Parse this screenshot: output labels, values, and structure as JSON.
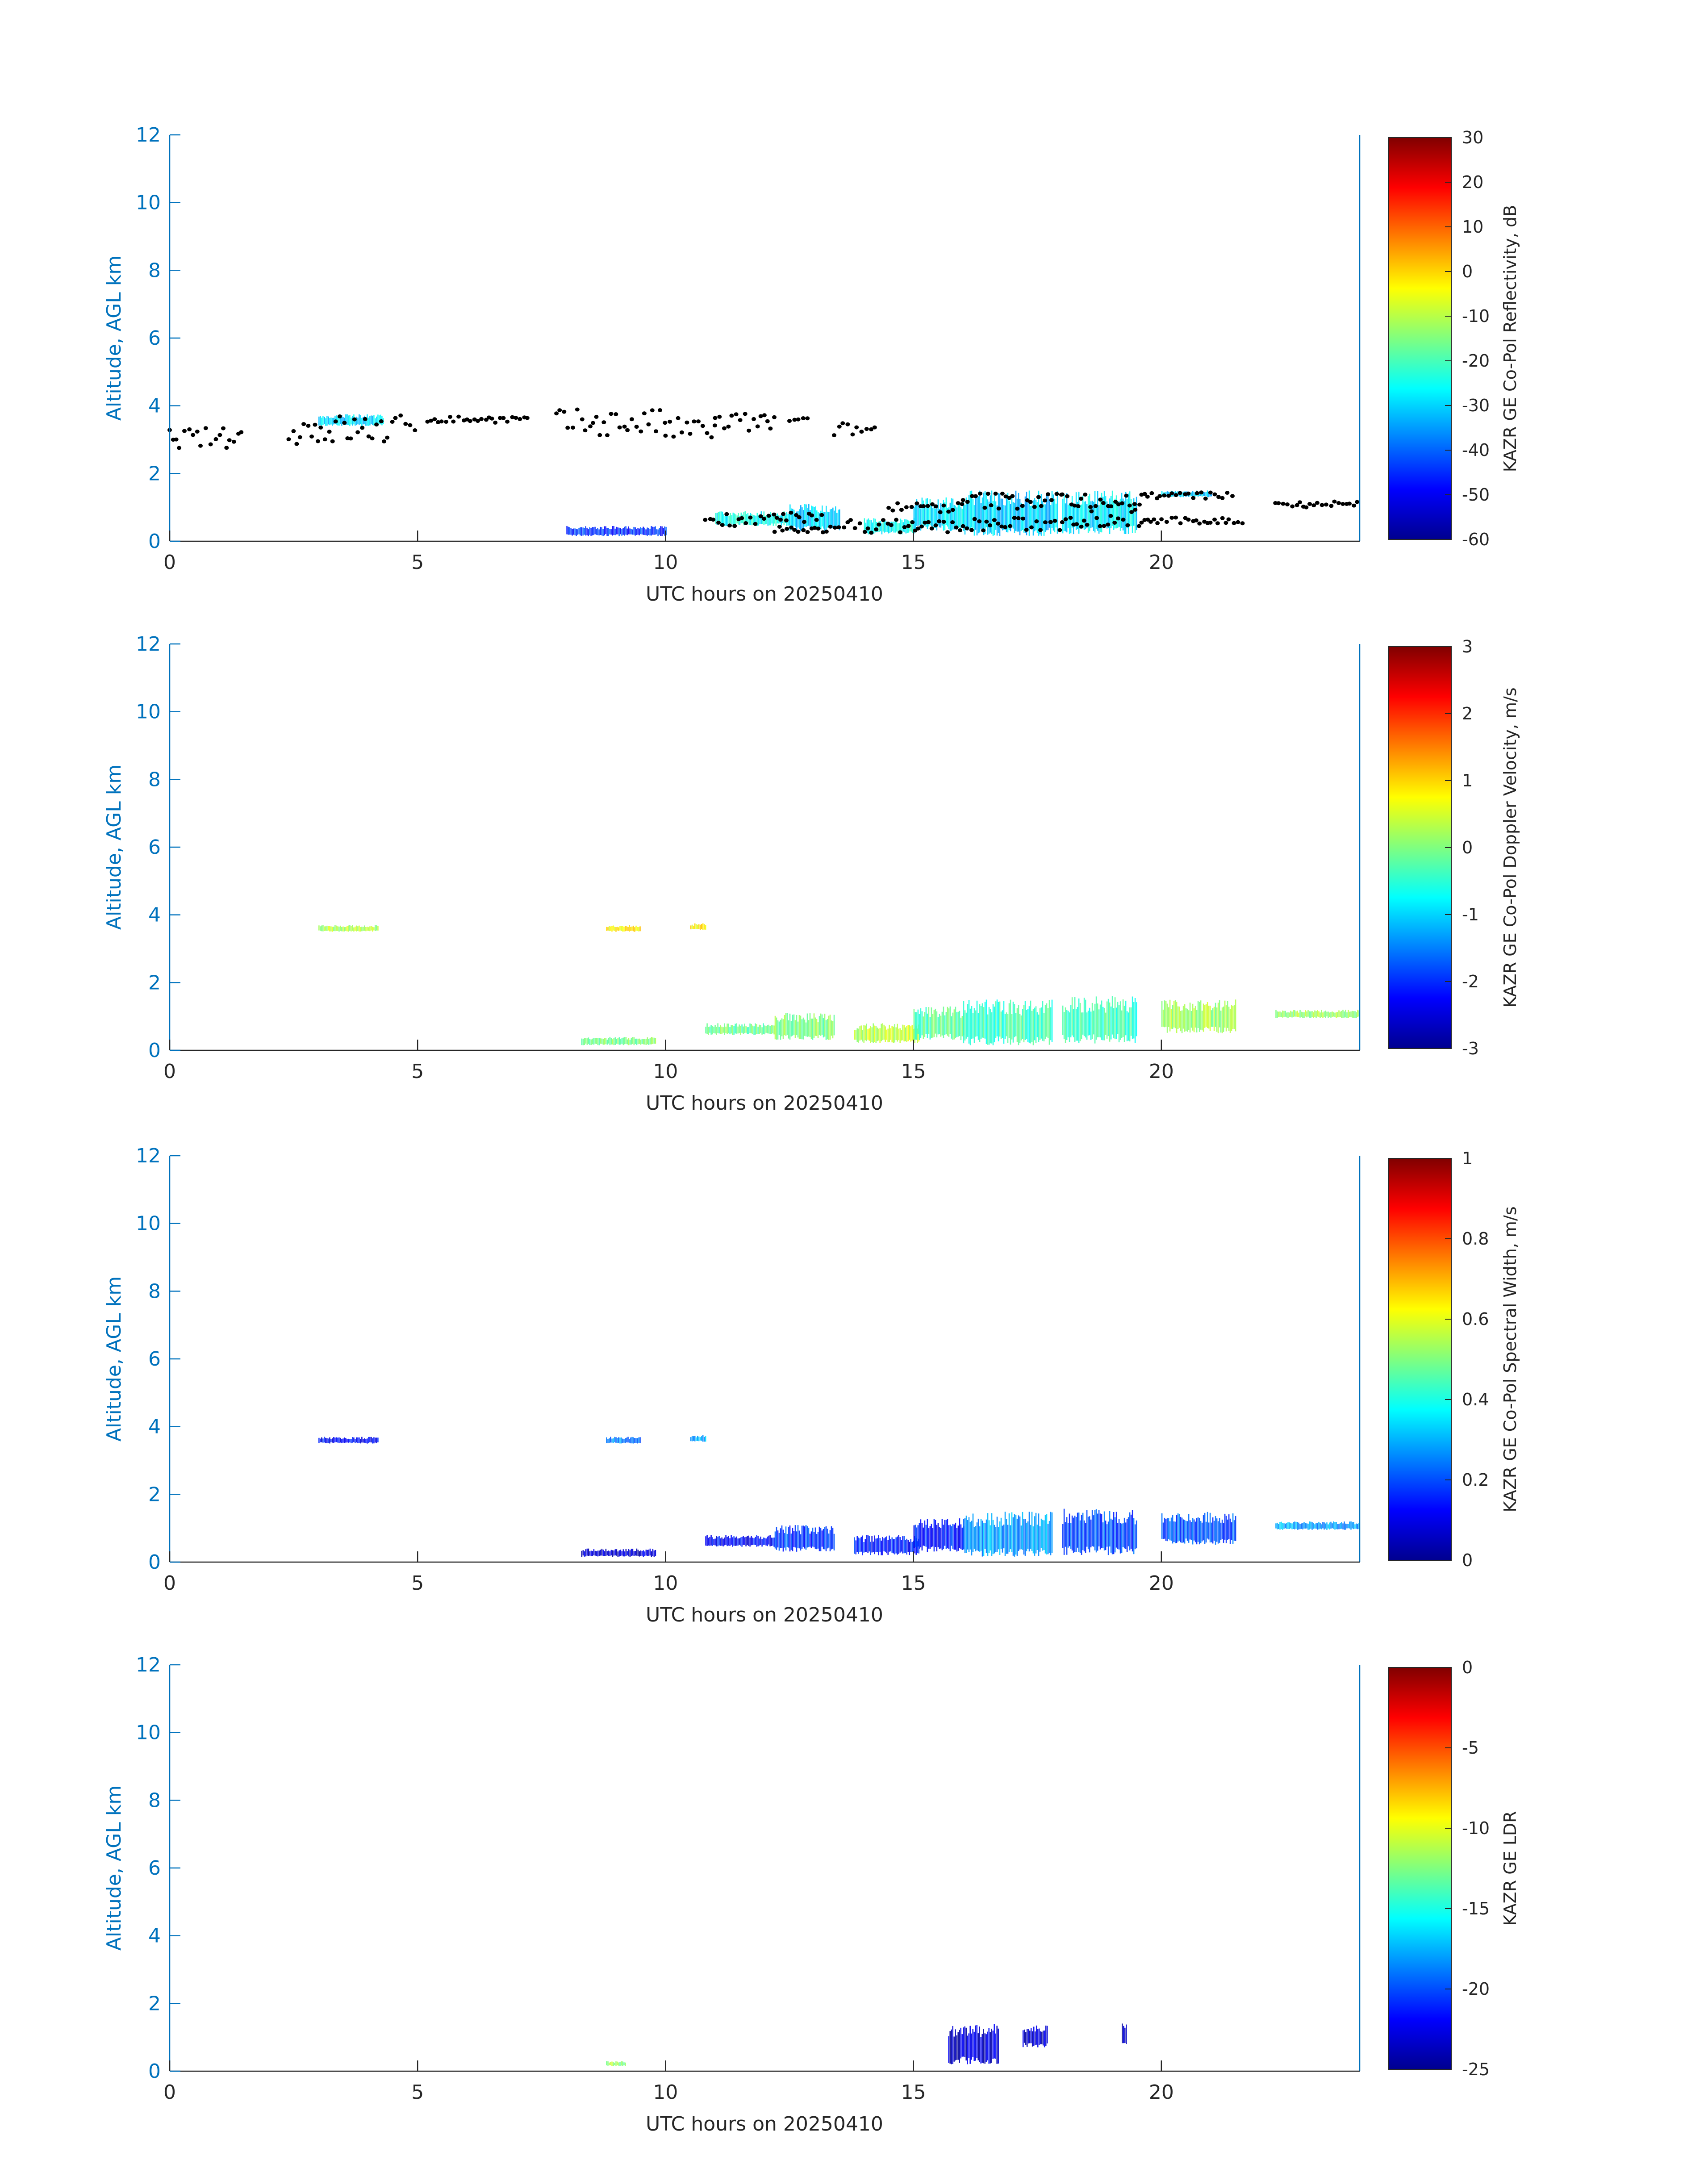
{
  "colors": {
    "axis_blue": "#0072bd",
    "text_dark": "#262626",
    "echo_mask": "#000000"
  },
  "chart_data": [
    {
      "type": "heatmap",
      "name": "reflectivity",
      "xlabel": "UTC hours on 20250410",
      "ylabel": "Altitude, AGL km",
      "xlim": [
        0,
        24
      ],
      "ylim": [
        0,
        12
      ],
      "xticks": [
        0,
        5,
        10,
        15,
        20
      ],
      "yticks": [
        0,
        2,
        4,
        6,
        8,
        10,
        12
      ],
      "colorbar": {
        "label": "KAZR GE Co-Pol Reflectivity, dB",
        "range": [
          -60,
          30
        ],
        "ticks": [
          -60,
          -50,
          -40,
          -30,
          -20,
          -10,
          0,
          10,
          20,
          30
        ]
      },
      "echo_regions": [
        {
          "x": [
            8.0,
            10.0
          ],
          "y": [
            0.15,
            0.45
          ],
          "value": -45
        },
        {
          "x": [
            11.0,
            12.5
          ],
          "y": [
            0.45,
            0.9
          ],
          "value": -25
        },
        {
          "x": [
            12.5,
            13.5
          ],
          "y": [
            0.3,
            1.1
          ],
          "value": -30
        },
        {
          "x": [
            14.0,
            15.0
          ],
          "y": [
            0.2,
            0.7
          ],
          "value": -25
        },
        {
          "x": [
            15.0,
            16.0
          ],
          "y": [
            0.3,
            1.3
          ],
          "value": -28
        },
        {
          "x": [
            16.0,
            17.9
          ],
          "y": [
            0.15,
            1.5
          ],
          "value": -30
        },
        {
          "x": [
            18.0,
            19.5
          ],
          "y": [
            0.2,
            1.5
          ],
          "value": -28
        },
        {
          "x": [
            20.0,
            21.0
          ],
          "y": [
            1.3,
            1.5
          ],
          "value": -30
        },
        {
          "x": [
            3.0,
            4.3
          ],
          "y": [
            3.4,
            3.75
          ],
          "value": -30
        }
      ],
      "cloud_boundary_points": [
        {
          "x": [
            0.0,
            1.5
          ],
          "y": 3.05,
          "spread": 0.3
        },
        {
          "x": [
            2.4,
            5.0
          ],
          "y": 3.3,
          "spread": 0.45
        },
        {
          "x": [
            5.2,
            7.3
          ],
          "y": 3.6,
          "spread": 0.1
        },
        {
          "x": [
            7.8,
            10.0
          ],
          "y": 3.5,
          "spread": 0.4
        },
        {
          "x": [
            10.0,
            11.0
          ],
          "y": 3.3,
          "spread": 0.35
        },
        {
          "x": [
            11.0,
            12.2
          ],
          "y": 3.5,
          "spread": 0.3
        },
        {
          "x": [
            12.5,
            12.9
          ],
          "y": 3.55,
          "spread": 0.1
        },
        {
          "x": [
            13.4,
            14.3
          ],
          "y": 3.3,
          "spread": 0.2
        },
        {
          "x": [
            10.8,
            13.2
          ],
          "y": 0.65,
          "spread": 0.2
        },
        {
          "x": [
            12.2,
            13.5
          ],
          "y": 0.35,
          "spread": 0.1
        },
        {
          "x": [
            13.6,
            16.0
          ],
          "y": 0.45,
          "spread": 0.2
        },
        {
          "x": [
            14.5,
            16.0
          ],
          "y": 1.0,
          "spread": 0.15
        },
        {
          "x": [
            16.0,
            18.0
          ],
          "y": 1.2,
          "spread": 0.25
        },
        {
          "x": [
            16.0,
            18.0
          ],
          "y": 0.5,
          "spread": 0.2
        },
        {
          "x": [
            18.0,
            19.6
          ],
          "y": 0.7,
          "spread": 0.3
        },
        {
          "x": [
            18.0,
            19.6
          ],
          "y": 1.2,
          "spread": 0.2
        },
        {
          "x": [
            19.6,
            21.5
          ],
          "y": 1.35,
          "spread": 0.1
        },
        {
          "x": [
            19.6,
            21.7
          ],
          "y": 0.6,
          "spread": 0.1
        },
        {
          "x": [
            22.3,
            24.0
          ],
          "y": 1.1,
          "spread": 0.1
        }
      ]
    },
    {
      "type": "heatmap",
      "name": "doppler",
      "xlabel": "UTC hours on 20250410",
      "ylabel": "Altitude, AGL km",
      "xlim": [
        0,
        24
      ],
      "ylim": [
        0,
        12
      ],
      "xticks": [
        0,
        5,
        10,
        15,
        20
      ],
      "yticks": [
        0,
        2,
        4,
        6,
        8,
        10,
        12
      ],
      "colorbar": {
        "label": "KAZR GE Co-Pol Doppler Velocity, m/s",
        "range": [
          -3,
          3
        ],
        "ticks": [
          -3,
          -2,
          -1,
          0,
          1,
          2,
          3
        ]
      },
      "echo_regions": [
        {
          "x": [
            3.0,
            4.2
          ],
          "y": [
            3.5,
            3.7
          ],
          "value": 0.3
        },
        {
          "x": [
            8.8,
            9.5
          ],
          "y": [
            3.5,
            3.7
          ],
          "value": 0.8
        },
        {
          "x": [
            10.5,
            10.8
          ],
          "y": [
            3.55,
            3.75
          ],
          "value": 0.8
        },
        {
          "x": [
            8.3,
            9.8
          ],
          "y": [
            0.15,
            0.4
          ],
          "value": 0.0
        },
        {
          "x": [
            10.8,
            12.2
          ],
          "y": [
            0.45,
            0.8
          ],
          "value": -0.1
        },
        {
          "x": [
            12.2,
            13.4
          ],
          "y": [
            0.3,
            1.1
          ],
          "value": 0.0
        },
        {
          "x": [
            13.8,
            15.1
          ],
          "y": [
            0.2,
            0.8
          ],
          "value": 0.4
        },
        {
          "x": [
            15.0,
            16.0
          ],
          "y": [
            0.3,
            1.3
          ],
          "value": -0.2
        },
        {
          "x": [
            16.0,
            17.8
          ],
          "y": [
            0.15,
            1.5
          ],
          "value": -0.4
        },
        {
          "x": [
            18.0,
            19.5
          ],
          "y": [
            0.2,
            1.6
          ],
          "value": -0.4
        },
        {
          "x": [
            20.0,
            21.5
          ],
          "y": [
            0.5,
            1.5
          ],
          "value": 0.2
        },
        {
          "x": [
            22.3,
            24.0
          ],
          "y": [
            0.95,
            1.2
          ],
          "value": 0.2
        }
      ]
    },
    {
      "type": "heatmap",
      "name": "width",
      "xlabel": "UTC hours on 20250410",
      "ylabel": "Altitude, AGL km",
      "xlim": [
        0,
        24
      ],
      "ylim": [
        0,
        12
      ],
      "xticks": [
        0,
        5,
        10,
        15,
        20
      ],
      "yticks": [
        0,
        2,
        4,
        6,
        8,
        10,
        12
      ],
      "colorbar": {
        "label": "KAZR GE Co-Pol Spectral Width, m/s",
        "range": [
          0,
          1
        ],
        "ticks": [
          0,
          0.2,
          0.4,
          0.6,
          0.8,
          1
        ]
      },
      "echo_regions": [
        {
          "x": [
            3.0,
            4.2
          ],
          "y": [
            3.5,
            3.7
          ],
          "value": 0.12
        },
        {
          "x": [
            8.8,
            9.5
          ],
          "y": [
            3.5,
            3.7
          ],
          "value": 0.25
        },
        {
          "x": [
            10.5,
            10.8
          ],
          "y": [
            3.55,
            3.75
          ],
          "value": 0.3
        },
        {
          "x": [
            8.3,
            9.8
          ],
          "y": [
            0.15,
            0.4
          ],
          "value": 0.08
        },
        {
          "x": [
            10.8,
            12.2
          ],
          "y": [
            0.45,
            0.8
          ],
          "value": 0.12
        },
        {
          "x": [
            12.2,
            13.4
          ],
          "y": [
            0.3,
            1.1
          ],
          "value": 0.18
        },
        {
          "x": [
            13.8,
            15.1
          ],
          "y": [
            0.2,
            0.8
          ],
          "value": 0.15
        },
        {
          "x": [
            15.0,
            16.0
          ],
          "y": [
            0.3,
            1.3
          ],
          "value": 0.15
        },
        {
          "x": [
            16.0,
            17.8
          ],
          "y": [
            0.15,
            1.5
          ],
          "value": 0.28
        },
        {
          "x": [
            18.0,
            19.5
          ],
          "y": [
            0.2,
            1.6
          ],
          "value": 0.2
        },
        {
          "x": [
            20.0,
            21.5
          ],
          "y": [
            0.5,
            1.5
          ],
          "value": 0.2
        },
        {
          "x": [
            22.3,
            24.0
          ],
          "y": [
            0.95,
            1.2
          ],
          "value": 0.28
        }
      ]
    },
    {
      "type": "heatmap",
      "name": "ldr",
      "xlabel": "UTC hours on 20250410",
      "ylabel": "Altitude, AGL km",
      "xlim": [
        0,
        24
      ],
      "ylim": [
        0,
        12
      ],
      "xticks": [
        0,
        5,
        10,
        15,
        20
      ],
      "yticks": [
        0,
        2,
        4,
        6,
        8,
        10,
        12
      ],
      "colorbar": {
        "label": "KAZR GE LDR",
        "range": [
          -25,
          0
        ],
        "ticks": [
          -25,
          -20,
          -15,
          -10,
          -5,
          0
        ]
      },
      "echo_regions": [
        {
          "x": [
            15.7,
            16.7
          ],
          "y": [
            0.2,
            1.4
          ],
          "value": -23
        },
        {
          "x": [
            17.2,
            17.7
          ],
          "y": [
            0.7,
            1.4
          ],
          "value": -23
        },
        {
          "x": [
            19.2,
            19.3
          ],
          "y": [
            0.7,
            1.5
          ],
          "value": -23
        },
        {
          "x": [
            8.8,
            9.2
          ],
          "y": [
            0.15,
            0.3
          ],
          "value": -12
        }
      ]
    }
  ]
}
